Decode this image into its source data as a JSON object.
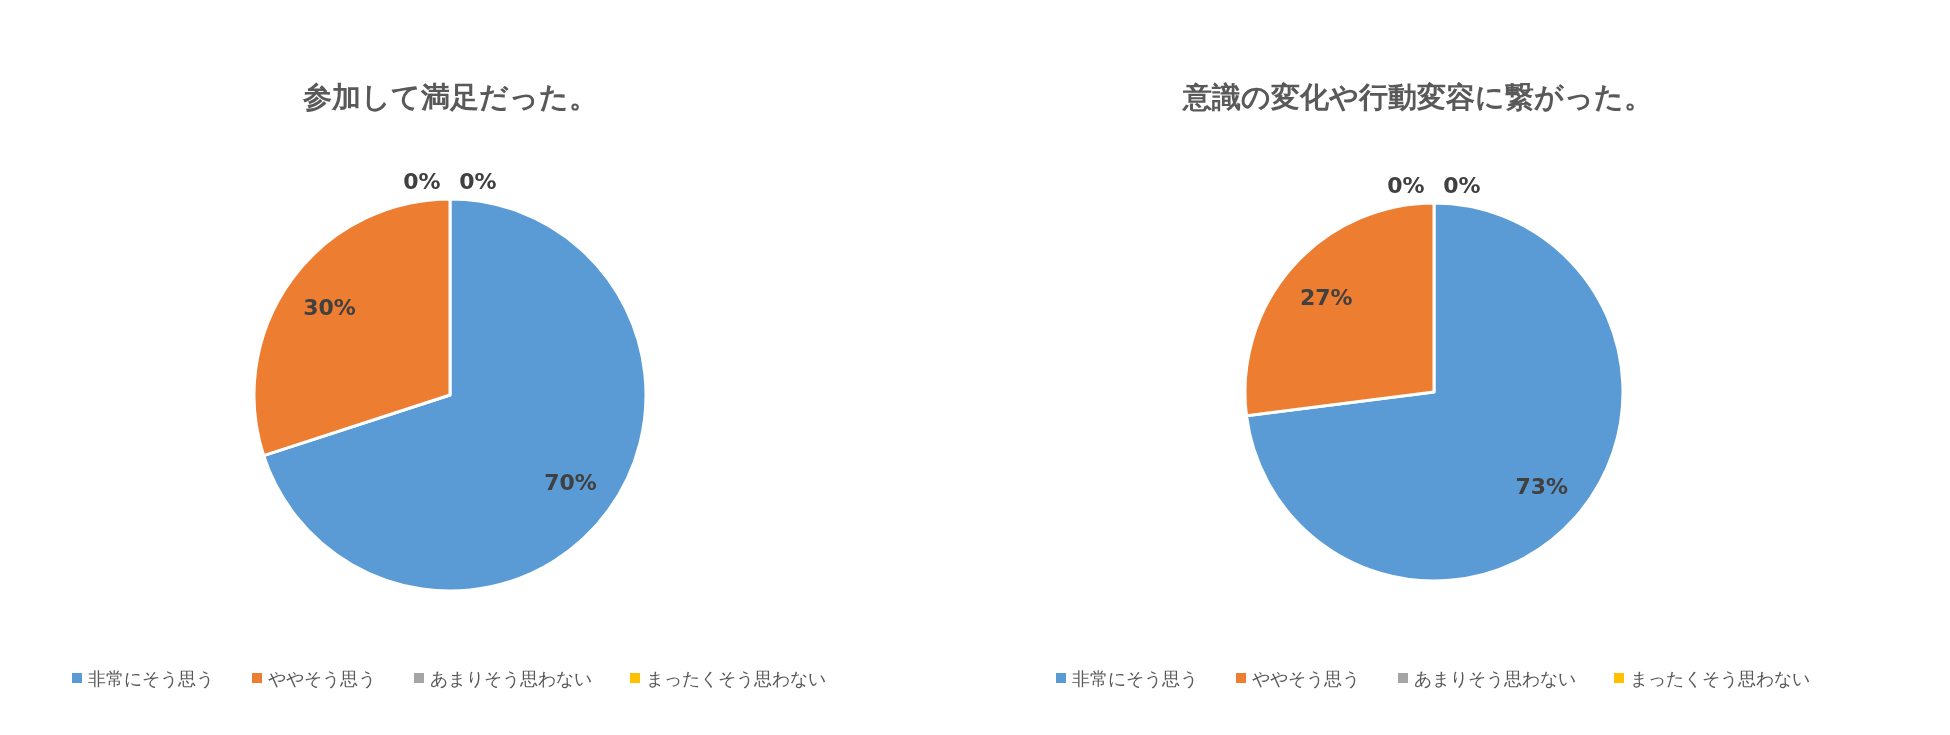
{
  "chart_data": [
    {
      "type": "pie",
      "title": "参加して満足だった。",
      "categories": [
        "非常にそう思う",
        "ややそう思う",
        "あまりそう思わない",
        "まったくそう思わない"
      ],
      "values": [
        70,
        30,
        0,
        0
      ],
      "value_labels": [
        "70%",
        "30%",
        "0%",
        "0%"
      ],
      "colors": [
        "#5b9bd5",
        "#ed7d31",
        "#a5a5a5",
        "#ffc000"
      ],
      "legend": "bottom"
    },
    {
      "type": "pie",
      "title": "意識の変化や行動変容に繋がった。",
      "categories": [
        "非常にそう思う",
        "ややそう思う",
        "あまりそう思わない",
        "まったくそう思わない"
      ],
      "values": [
        73,
        27,
        0,
        0
      ],
      "value_labels": [
        "73%",
        "27%",
        "0%",
        "0%"
      ],
      "colors": [
        "#5b9bd5",
        "#ed7d31",
        "#a5a5a5",
        "#ffc000"
      ],
      "legend": "bottom"
    }
  ]
}
